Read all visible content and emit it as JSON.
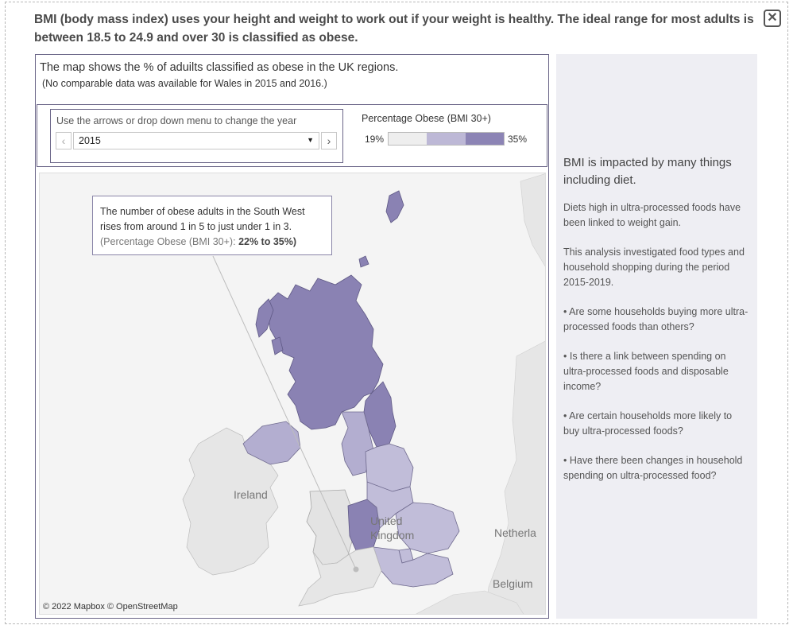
{
  "header": {
    "intro_text": "BMI (body mass index) uses your height and weight to work out if your weight is healthy. The ideal range for most adults is between 18.5 to 24.9 and over 30 is classified as obese.",
    "close_icon": "close-icon"
  },
  "map_panel": {
    "heading": "The map shows the % of aduilts classified as obese in the UK regions.",
    "subheading": "(No comparable data was available for Wales in 2015 and 2016.)",
    "year_control": {
      "label": "Use the arrows or drop down menu  to change the year",
      "selected_year": "2015",
      "prev_icon": "chevron-left-icon",
      "next_icon": "chevron-right-icon",
      "dropdown_icon": "caret-down-icon"
    },
    "legend": {
      "title": "Percentage Obese (BMI 30+)",
      "min_label": "19%",
      "max_label": "35%",
      "colors": [
        "#eeeeee",
        "#bdb8d6",
        "#8c84b5"
      ]
    },
    "callout": {
      "line1": "The number of obese adults in the South West",
      "line2": "rises from around 1 in 5 to  just under 1 in 3.",
      "metric_label": "(Percentage Obese (BMI 30+):",
      "metric_value": "22% to 35%)"
    },
    "map_labels": {
      "ireland": "Ireland",
      "united_kingdom": "United Kingdom",
      "netherlands": "Netherla",
      "belgium": "Belgium"
    },
    "attribution": "© 2022 Mapbox  © OpenStreetMap"
  },
  "side_panel": {
    "heading": "BMI is impacted by many things including diet.",
    "paragraphs": [
      "Diets high in ultra-processed foods have been linked to weight gain.",
      "This analysis investigated food types and household shopping during the period 2015-2019.",
      "•  Are some  households buying more ultra-processed foods than others?",
      " • Is there a link between spending on ultra-processed foods and disposable income?",
      "•  Are certain households more likely to buy ultra-processed foods?",
      "• Have there been changes in household spending on ultra-processed food?"
    ]
  },
  "colors": {
    "frame_border": "#6b6688",
    "scotland": "#8a82b3",
    "north_east": "#8a82b3",
    "west_midlands": "#8a82b3",
    "mid_regions": "#b3aed0",
    "light_regions": "#c1bdd9",
    "wales": "#e3e3e3",
    "land_other": "#e6e6e6",
    "side_panel_bg": "#eeeef3"
  }
}
